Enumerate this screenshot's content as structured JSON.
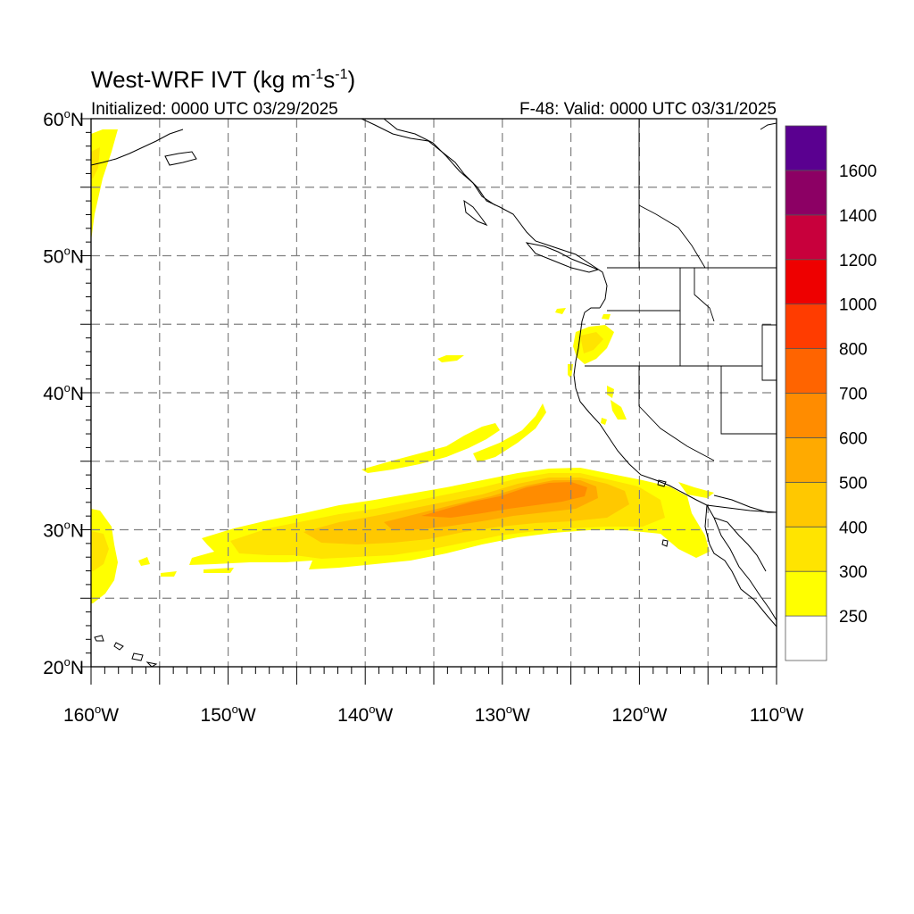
{
  "title": {
    "main": "West-WRF IVT (kg m",
    "sup1": "-1",
    "mid": "s",
    "sup2": "-1",
    "close": ")"
  },
  "subtitle_left": "Initialized: 0000 UTC 03/29/2025",
  "subtitle_right": "F-48: Valid: 0000 UTC 03/31/2025",
  "map": {
    "lon_range": [
      -160,
      -110
    ],
    "lat_range": [
      20,
      60
    ],
    "grid": true,
    "grid_style": "dashed",
    "lon_labels": [
      {
        "value": -160,
        "text": "160",
        "deg": "o",
        "dir": "W"
      },
      {
        "value": -150,
        "text": "150",
        "deg": "o",
        "dir": "W"
      },
      {
        "value": -140,
        "text": "140",
        "deg": "o",
        "dir": "W"
      },
      {
        "value": -130,
        "text": "130",
        "deg": "o",
        "dir": "W"
      },
      {
        "value": -120,
        "text": "120",
        "deg": "o",
        "dir": "W"
      },
      {
        "value": -110,
        "text": "110",
        "deg": "o",
        "dir": "W"
      }
    ],
    "lat_labels": [
      {
        "value": 60,
        "text": "60",
        "deg": "o",
        "dir": "N"
      },
      {
        "value": 50,
        "text": "50",
        "deg": "o",
        "dir": "N"
      },
      {
        "value": 40,
        "text": "40",
        "deg": "o",
        "dir": "N"
      },
      {
        "value": 30,
        "text": "30",
        "deg": "o",
        "dir": "N"
      },
      {
        "value": 20,
        "text": "20",
        "deg": "o",
        "dir": "N"
      }
    ],
    "grid_lons": [
      -155,
      -150,
      -145,
      -140,
      -135,
      -130,
      -125,
      -120,
      -115
    ],
    "grid_lats": [
      25,
      30,
      35,
      40,
      45,
      50,
      55
    ]
  },
  "colorbar": {
    "levels": [
      {
        "color": "#ffffff",
        "label": "250"
      },
      {
        "color": "#ffff00",
        "label": "300"
      },
      {
        "color": "#ffe400",
        "label": "400"
      },
      {
        "color": "#ffc800",
        "label": "500"
      },
      {
        "color": "#ffaa00",
        "label": "600"
      },
      {
        "color": "#ff8c00",
        "label": "700"
      },
      {
        "color": "#ff6400",
        "label": "800"
      },
      {
        "color": "#ff3c00",
        "label": "1000"
      },
      {
        "color": "#ee0000",
        "label": "1200"
      },
      {
        "color": "#c8003c",
        "label": "1400"
      },
      {
        "color": "#8c0064",
        "label": "1600"
      },
      {
        "color": "#5a0090",
        "label": ""
      }
    ]
  },
  "colors": {
    "ivt_250": "#ffff00",
    "ivt_300": "#ffe400",
    "ivt_400": "#ffc800",
    "ivt_500": "#ffaa00",
    "ivt_600": "#ff8c00",
    "coast": "#000000",
    "grid": "#808080"
  }
}
